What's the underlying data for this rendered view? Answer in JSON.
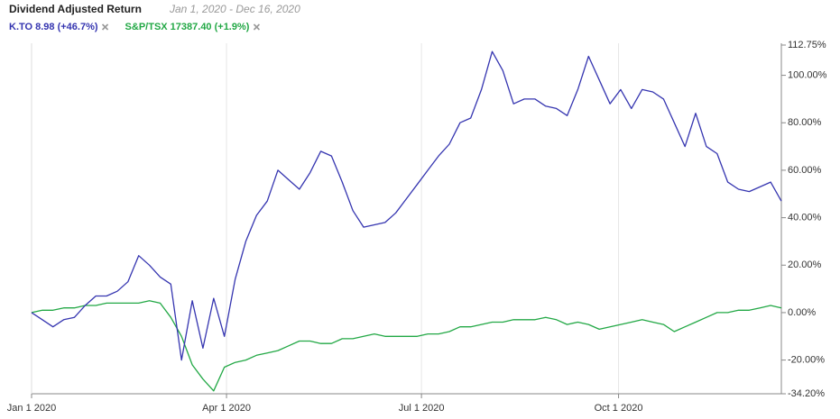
{
  "chart_data": {
    "type": "line",
    "title": "Dividend Adjusted Return",
    "subtitle": "Jan 1, 2020 - Dec 16, 2020",
    "x": [
      "2020-01-01",
      "2020-01-06",
      "2020-01-11",
      "2020-01-16",
      "2020-01-21",
      "2020-01-26",
      "2020-01-31",
      "2020-02-05",
      "2020-02-10",
      "2020-02-15",
      "2020-02-20",
      "2020-02-25",
      "2020-03-01",
      "2020-03-06",
      "2020-03-11",
      "2020-03-16",
      "2020-03-21",
      "2020-03-26",
      "2020-03-31",
      "2020-04-05",
      "2020-04-10",
      "2020-04-15",
      "2020-04-20",
      "2020-04-25",
      "2020-04-30",
      "2020-05-05",
      "2020-05-10",
      "2020-05-15",
      "2020-05-20",
      "2020-05-25",
      "2020-05-30",
      "2020-06-04",
      "2020-06-09",
      "2020-06-14",
      "2020-06-19",
      "2020-06-24",
      "2020-06-29",
      "2020-07-04",
      "2020-07-09",
      "2020-07-14",
      "2020-07-19",
      "2020-07-24",
      "2020-07-29",
      "2020-08-03",
      "2020-08-08",
      "2020-08-13",
      "2020-08-18",
      "2020-08-23",
      "2020-08-28",
      "2020-09-02",
      "2020-09-07",
      "2020-09-12",
      "2020-09-17",
      "2020-09-22",
      "2020-09-27",
      "2020-10-02",
      "2020-10-07",
      "2020-10-12",
      "2020-10-17",
      "2020-10-22",
      "2020-10-27",
      "2020-11-01",
      "2020-11-06",
      "2020-11-11",
      "2020-11-16",
      "2020-11-21",
      "2020-11-26",
      "2020-12-01",
      "2020-12-06",
      "2020-12-11",
      "2020-12-16"
    ],
    "series": [
      {
        "name": "K.TO 8.98 (+46.7%)",
        "color": "#3535b0",
        "values": [
          0,
          -3,
          -6,
          -3,
          -2,
          3,
          7,
          7,
          9,
          13,
          24,
          20,
          15,
          12,
          -20,
          5,
          -15,
          6,
          -10,
          14,
          30,
          41,
          47,
          60,
          56,
          52,
          59,
          68,
          66,
          55,
          43,
          36,
          37,
          38,
          42,
          48,
          54,
          60,
          66,
          71,
          80,
          82,
          94,
          110,
          102,
          88,
          90,
          90,
          87,
          86,
          83,
          94,
          108,
          98,
          88,
          94,
          86,
          94,
          93,
          90,
          80,
          70,
          84,
          70,
          67,
          55,
          52,
          51,
          53,
          55,
          47
        ]
      },
      {
        "name": "S&P/TSX 17387.40 (+1.9%)",
        "color": "#22a845",
        "values": [
          0,
          1,
          1,
          2,
          2,
          3,
          3,
          4,
          4,
          4,
          4,
          5,
          4,
          -2,
          -10,
          -22,
          -28,
          -33,
          -23,
          -21,
          -20,
          -18,
          -17,
          -16,
          -14,
          -12,
          -12,
          -13,
          -13,
          -11,
          -11,
          -10,
          -9,
          -10,
          -10,
          -10,
          -10,
          -9,
          -9,
          -8,
          -6,
          -6,
          -5,
          -4,
          -4,
          -3,
          -3,
          -3,
          -2,
          -3,
          -5,
          -4,
          -5,
          -7,
          -6,
          -5,
          -4,
          -3,
          -4,
          -5,
          -8,
          -6,
          -4,
          -2,
          0,
          0,
          1,
          1,
          2,
          3,
          2
        ]
      }
    ],
    "xlim": [
      "2020-01-01",
      "2020-12-16"
    ],
    "xticks": [
      {
        "value": "2020-01-01",
        "label": "Jan 1 2020"
      },
      {
        "value": "2020-04-01",
        "label": "Apr 1 2020"
      },
      {
        "value": "2020-07-01",
        "label": "Jul 1 2020"
      },
      {
        "value": "2020-10-01",
        "label": "Oct 1 2020"
      }
    ],
    "ylim": [
      -34.2,
      112.75
    ],
    "yticks": [
      {
        "value": 112.75,
        "label": "112.75%"
      },
      {
        "value": 100,
        "label": "100.00%"
      },
      {
        "value": 80,
        "label": "80.00%"
      },
      {
        "value": 60,
        "label": "60.00%"
      },
      {
        "value": 40,
        "label": "40.00%"
      },
      {
        "value": 20,
        "label": "20.00%"
      },
      {
        "value": 0,
        "label": "0.00%"
      },
      {
        "value": -20,
        "label": "-20.00%"
      },
      {
        "value": -34.2,
        "label": "-34.20%"
      }
    ],
    "grid": true
  }
}
